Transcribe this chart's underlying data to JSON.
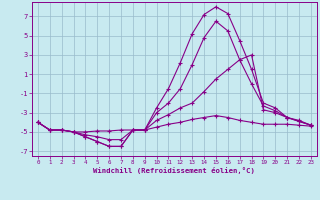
{
  "xlabel": "Windchill (Refroidissement éolien,°C)",
  "bg_color": "#c8eaf0",
  "line_color": "#880088",
  "grid_color": "#99bbcc",
  "xlim": [
    -0.5,
    23.5
  ],
  "ylim": [
    -7.5,
    8.5
  ],
  "yticks": [
    -7,
    -5,
    -3,
    -1,
    1,
    3,
    5,
    7
  ],
  "xticks": [
    0,
    1,
    2,
    3,
    4,
    5,
    6,
    7,
    8,
    9,
    10,
    11,
    12,
    13,
    14,
    15,
    16,
    17,
    18,
    19,
    20,
    21,
    22,
    23
  ],
  "line1_y": [
    -4.0,
    -4.8,
    -4.8,
    -5.0,
    -5.5,
    -6.0,
    -6.5,
    -6.5,
    -4.8,
    -4.8,
    -2.5,
    -0.5,
    2.2,
    5.2,
    7.2,
    8.0,
    7.3,
    4.5,
    1.5,
    -2.0,
    -2.5,
    -3.5,
    -3.8,
    -4.3
  ],
  "line2_y": [
    -4.0,
    -4.8,
    -4.8,
    -5.0,
    -5.5,
    -6.0,
    -6.5,
    -6.5,
    -4.8,
    -4.8,
    -3.0,
    -2.0,
    -0.5,
    2.0,
    4.8,
    6.5,
    5.5,
    2.5,
    0.0,
    -2.3,
    -2.8,
    -3.5,
    -3.9,
    -4.3
  ],
  "line3_y": [
    -4.0,
    -4.8,
    -4.8,
    -5.0,
    -5.3,
    -5.5,
    -5.8,
    -5.8,
    -4.8,
    -4.8,
    -3.8,
    -3.2,
    -2.5,
    -2.0,
    -0.8,
    0.5,
    1.5,
    2.5,
    3.0,
    -2.7,
    -3.0,
    -3.5,
    -3.9,
    -4.3
  ],
  "line4_y": [
    -4.0,
    -4.8,
    -4.8,
    -5.0,
    -5.0,
    -4.9,
    -4.9,
    -4.8,
    -4.8,
    -4.8,
    -4.5,
    -4.2,
    -4.0,
    -3.7,
    -3.5,
    -3.3,
    -3.5,
    -3.8,
    -4.0,
    -4.2,
    -4.2,
    -4.2,
    -4.3,
    -4.4
  ]
}
